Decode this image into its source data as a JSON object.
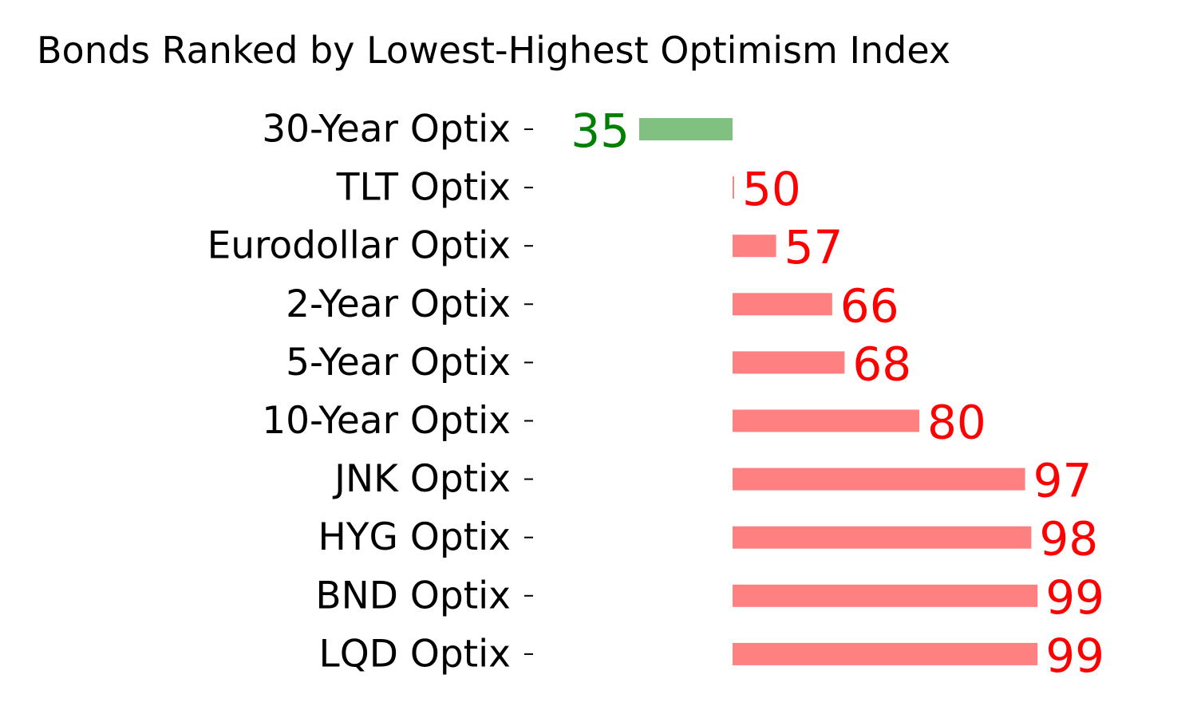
{
  "chart_data": {
    "type": "bar",
    "orientation": "horizontal",
    "title": "Bonds Ranked by Lowest-Highest Optimism Index",
    "xlabel": "",
    "ylabel": "",
    "baseline": 50,
    "xlim": [
      30,
      105
    ],
    "grid": false,
    "categories": [
      "30-Year Optix",
      "TLT Optix",
      "Eurodollar Optix",
      "2-Year Optix",
      "5-Year Optix",
      "10-Year Optix",
      "JNK Optix",
      "HYG Optix",
      "BND Optix",
      "LQD Optix"
    ],
    "values": [
      35,
      50,
      57,
      66,
      68,
      80,
      97,
      98,
      99,
      99
    ],
    "colors": {
      "below_baseline_bar": "#80c080",
      "below_baseline_label": "#008000",
      "above_baseline_bar": "#ff8080",
      "above_baseline_label": "#ff0000"
    }
  }
}
